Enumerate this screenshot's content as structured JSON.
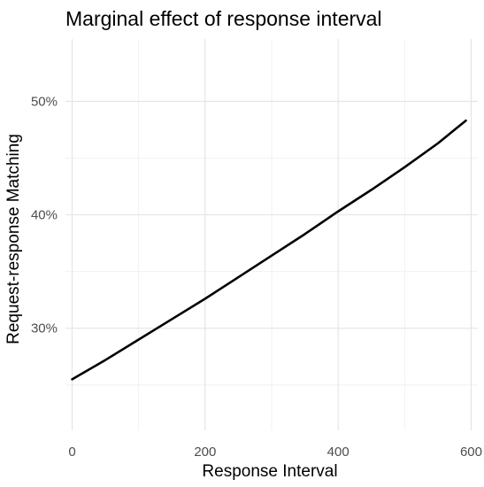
{
  "chart_data": {
    "type": "line",
    "title": "Marginal effect of response interval",
    "xlabel": "Response Interval",
    "ylabel": "Request-response Matching",
    "xlim": [
      -10,
      610
    ],
    "ylim": [
      0.21,
      0.555
    ],
    "x_ticks": [
      0,
      200,
      400,
      600
    ],
    "x_tick_labels": [
      "0",
      "200",
      "400",
      "600"
    ],
    "y_ticks": [
      0.3,
      0.4,
      0.5
    ],
    "y_tick_labels": [
      "30%",
      "40%",
      "50%"
    ],
    "x_minor_ticks": [
      100,
      300,
      500
    ],
    "y_minor_ticks": [
      0.25,
      0.35,
      0.45
    ],
    "grid": true,
    "line_color": "#000000",
    "series": [
      {
        "x": [
          0,
          50,
          100,
          150,
          200,
          250,
          300,
          350,
          400,
          450,
          500,
          550,
          592
        ],
        "values": [
          0.255,
          0.272,
          0.29,
          0.308,
          0.326,
          0.345,
          0.364,
          0.383,
          0.403,
          0.422,
          0.442,
          0.463,
          0.483
        ]
      }
    ]
  }
}
